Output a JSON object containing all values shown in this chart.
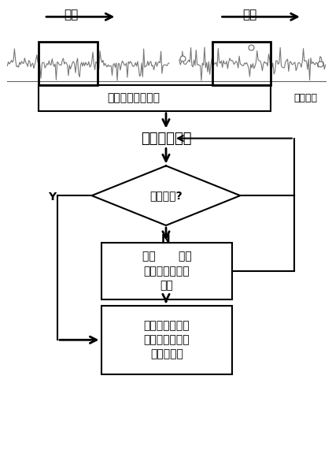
{
  "bg_color": "#ffffff",
  "signal_color": "#777777",
  "sliding_label_left": "滑动",
  "sliding_label_right": "滑动",
  "label_context": "待预测上下文信息",
  "label_recon": "重构数据",
  "label_calc": "计算重构误差",
  "label_diamond": "大于阈值?",
  "label_Y": "Y",
  "label_N": "N",
  "label_box1_line1": "查询      并推",
  "label_box1_line2": "断使用哪个基检",
  "label_box1_line3": "测器",
  "label_box2_line1": "使用默认基检测",
  "label_box2_line2": "器并通知运维人",
  "label_box2_line3": "员标注数据",
  "font_size": 10,
  "font_size_calc": 13
}
